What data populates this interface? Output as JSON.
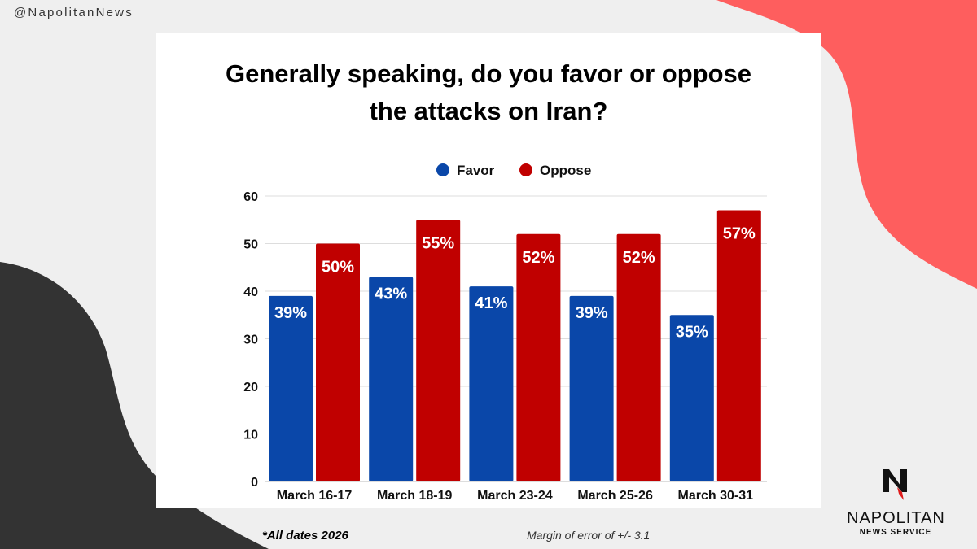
{
  "handle": "@NapolitanNews",
  "footnote": "*All dates 2026",
  "margin_note": "Margin of error of +/- 3.1",
  "logo": {
    "line1": "NAPOLITAN",
    "line2": "NEWS SERVICE",
    "mark": "N"
  },
  "colors": {
    "favor": "#0a47a9",
    "oppose": "#c00000",
    "accent_blob": "#fe5e5e",
    "dark_blob": "#333333"
  },
  "chart_data": {
    "type": "bar",
    "title": "Generally speaking, do you favor or oppose the attacks on Iran?",
    "title_lines": [
      "Generally speaking, do you favor or oppose",
      "the attacks on Iran?"
    ],
    "categories": [
      "March 16-17",
      "March 18-19",
      "March 23-24",
      "March 25-26",
      "March 30-31"
    ],
    "series": [
      {
        "name": "Favor",
        "values": [
          39,
          43,
          41,
          39,
          35
        ],
        "labels": [
          "39%",
          "43%",
          "41%",
          "39%",
          "35%"
        ]
      },
      {
        "name": "Oppose",
        "values": [
          50,
          55,
          52,
          52,
          57
        ],
        "labels": [
          "50%",
          "55%",
          "52%",
          "52%",
          "57%"
        ]
      }
    ],
    "ylim": [
      0,
      60
    ],
    "yticks": [
      0,
      10,
      20,
      30,
      40,
      50,
      60
    ],
    "xlabel": "",
    "ylabel": "",
    "grid": true,
    "legend": "top-center"
  }
}
